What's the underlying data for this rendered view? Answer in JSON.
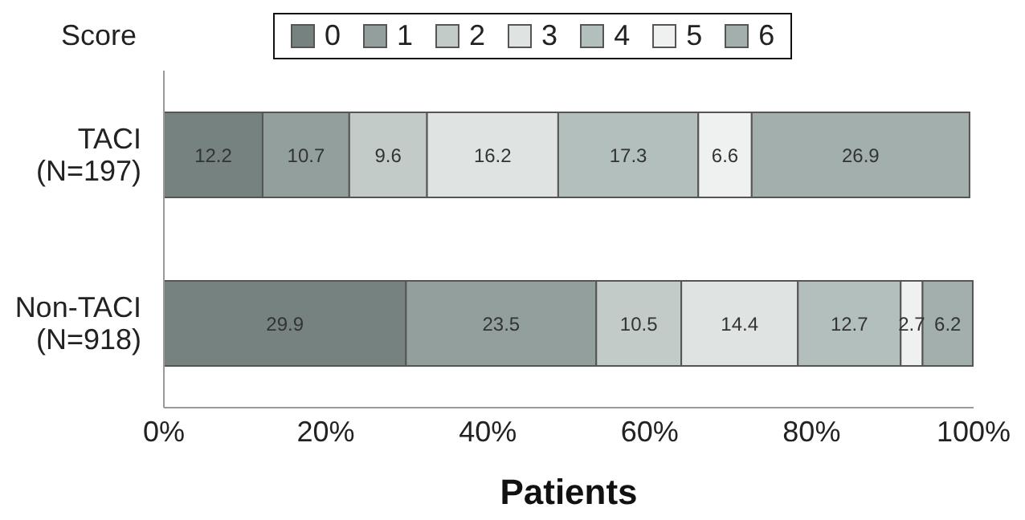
{
  "chart_data": {
    "type": "bar",
    "orientation": "horizontal",
    "stacked": true,
    "legend_title": "Score",
    "xlabel": "Patients",
    "categories": [
      "TACI\n(N=197)",
      "Non-TACI\n(N=918)"
    ],
    "series": [
      {
        "name": "0",
        "color": "#76827f",
        "values": [
          12.2,
          29.9
        ]
      },
      {
        "name": "1",
        "color": "#939f9d",
        "values": [
          10.7,
          23.5
        ]
      },
      {
        "name": "2",
        "color": "#c3cbc9",
        "values": [
          9.6,
          10.5
        ]
      },
      {
        "name": "3",
        "color": "#dfe4e3",
        "values": [
          16.2,
          14.4
        ]
      },
      {
        "name": "4",
        "color": "#b3bfbd",
        "values": [
          17.3,
          12.7
        ]
      },
      {
        "name": "5",
        "color": "#eef1f0",
        "values": [
          6.6,
          2.7
        ]
      },
      {
        "name": "6",
        "color": "#a3afad",
        "values": [
          26.9,
          6.2
        ]
      }
    ],
    "xlim": [
      0,
      100
    ],
    "xticks": [
      {
        "value": 0,
        "label": "0%"
      },
      {
        "value": 20,
        "label": "20%"
      },
      {
        "value": 40,
        "label": "40%"
      },
      {
        "value": 60,
        "label": "60%"
      },
      {
        "value": 80,
        "label": "80%"
      },
      {
        "value": 100,
        "label": "100%"
      }
    ],
    "data_labels": true,
    "legend": "top",
    "grid": false
  }
}
